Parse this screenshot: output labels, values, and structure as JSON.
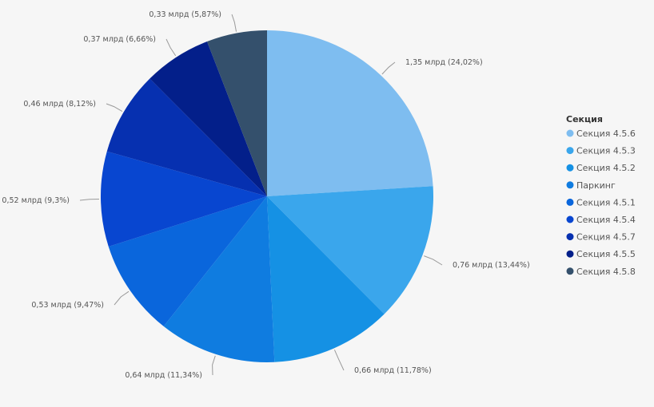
{
  "chart_data": {
    "type": "pie",
    "legend_title": "Секция",
    "legend_position": "right",
    "categories": [
      "Секция 4.5.6",
      "Секция 4.5.3",
      "Секция 4.5.2",
      "Паркинг",
      "Секция 4.5.1",
      "Секция 4.5.4",
      "Секция 4.5.7",
      "Секция 4.5.5",
      "Секция 4.5.8"
    ],
    "values": [
      1.35,
      0.76,
      0.66,
      0.64,
      0.53,
      0.52,
      0.46,
      0.37,
      0.33
    ],
    "percents": [
      24.02,
      13.44,
      11.78,
      11.34,
      9.47,
      9.3,
      8.12,
      6.66,
      5.87
    ],
    "data_labels": [
      "1,35 млрд (24,02%)",
      "0,76 млрд (13,44%)",
      "0,66 млрд (11,78%)",
      "0,64 млрд (11,34%)",
      "0,53 млрд (9,47%)",
      "0,52 млрд (9,3%)",
      "0,46 млрд (8,12%)",
      "0,37 млрд (6,66%)",
      "0,33 млрд (5,87%)"
    ],
    "colors": [
      "#7ebdf0",
      "#3aa6ec",
      "#1591e4",
      "#0f7ce0",
      "#0a66dc",
      "#0846d0",
      "#0630b0",
      "#031f8a",
      "#34506c"
    ]
  }
}
